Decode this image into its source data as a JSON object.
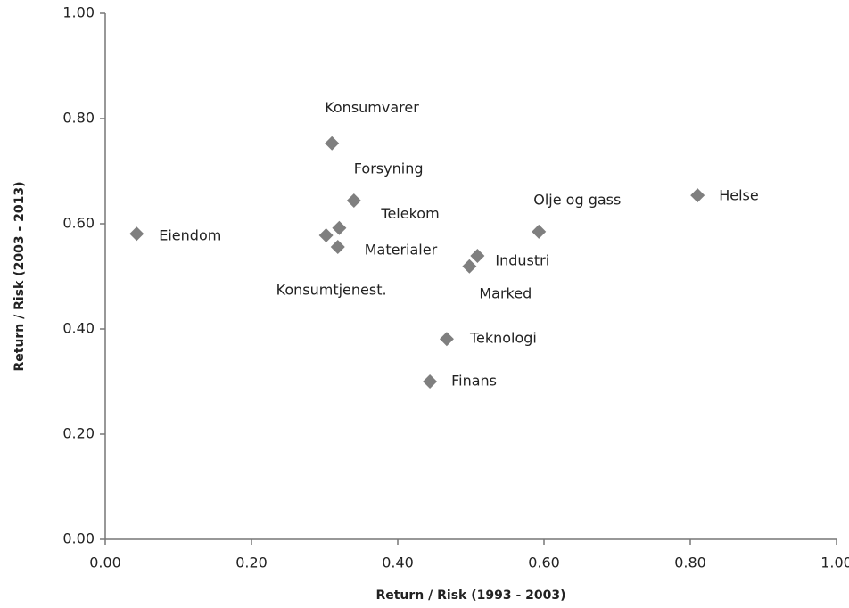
{
  "chart_data": {
    "type": "scatter",
    "x_label": "Return / Risk (1993 - 2003)",
    "y_label": "Return / Risk (2003 - 2013)",
    "point_labels": [
      "Eiendom",
      "Konsumvarer",
      "Forsyning",
      "Telekom",
      "Konsumtjenest.",
      "Materialer",
      "Industri",
      "Marked",
      "Olje og gass",
      "Helse",
      "Teknologi",
      "Finans"
    ],
    "x": [
      0.043,
      0.31,
      0.34,
      0.32,
      0.302,
      0.318,
      0.509,
      0.498,
      0.593,
      0.81,
      0.467,
      0.444
    ],
    "values": [
      0.581,
      0.753,
      0.644,
      0.592,
      0.578,
      0.556,
      0.539,
      0.519,
      0.585,
      0.654,
      0.381,
      0.3
    ],
    "color": "#7f7f7f",
    "xlim": [
      0,
      1
    ],
    "ylim": [
      0,
      1
    ],
    "xticks": [
      {
        "value": 0,
        "label": "0.00"
      },
      {
        "value": 0.2,
        "label": "0.20"
      },
      {
        "value": 0.4,
        "label": "0.40"
      },
      {
        "value": 0.6,
        "label": "0.60"
      },
      {
        "value": 0.8,
        "label": "0.80"
      },
      {
        "value": 1,
        "label": "1.00"
      }
    ],
    "yticks": [
      {
        "value": 0,
        "label": "0.00"
      },
      {
        "value": 0.2,
        "label": "0.20"
      },
      {
        "value": 0.4,
        "label": "0.40"
      },
      {
        "value": 0.6,
        "label": "0.60"
      },
      {
        "value": 0.8,
        "label": "0.80"
      },
      {
        "value": 1,
        "label": "1.00"
      }
    ],
    "grid": false
  }
}
